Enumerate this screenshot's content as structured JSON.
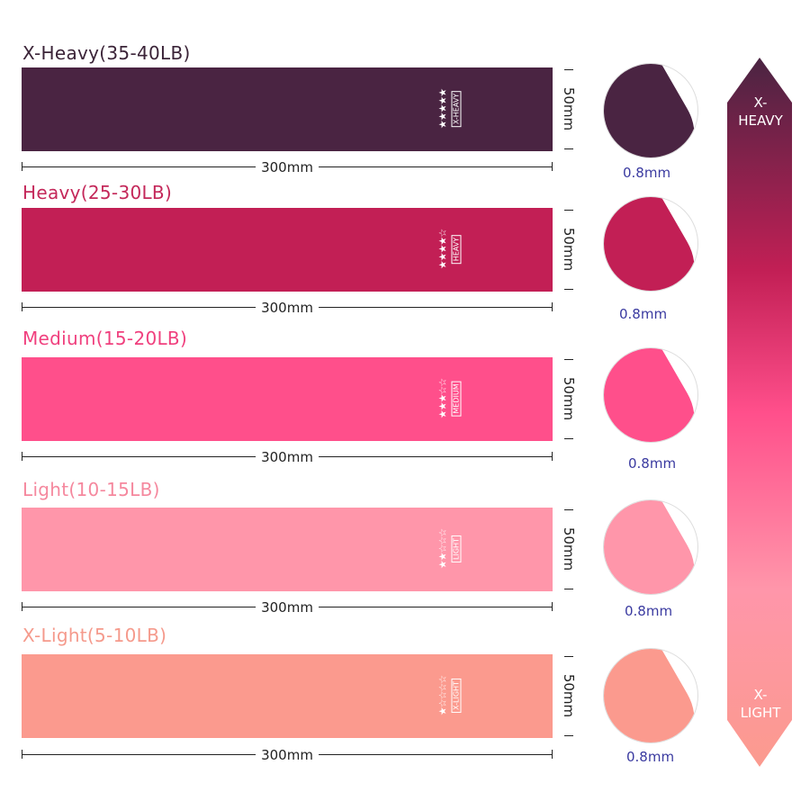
{
  "bands": [
    {
      "title": "X-Heavy(35-40LB)",
      "tag": "X-HEAVY",
      "stars": "★★★★★",
      "color": "#4a2442",
      "title_color": "#3b2438",
      "length": "300mm",
      "width": "50mm",
      "thickness": "0.8mm"
    },
    {
      "title": "Heavy(25-30LB)",
      "tag": "HEAVY",
      "stars": "★★★★☆",
      "color": "#c21f55",
      "title_color": "#c4285a",
      "length": "300mm",
      "width": "50mm",
      "thickness": "0.8mm"
    },
    {
      "title": "Medium(15-20LB)",
      "tag": "MEDIUM",
      "stars": "★★★☆☆",
      "color": "#ff4f8b",
      "title_color": "#f0407e",
      "length": "300mm",
      "width": "50mm",
      "thickness": "0.8mm"
    },
    {
      "title": "Light(10-15LB)",
      "tag": "LIGHT",
      "stars": "★★☆☆☆",
      "color": "#ff96aa",
      "title_color": "#f5889e",
      "length": "300mm",
      "width": "50mm",
      "thickness": "0.8mm"
    },
    {
      "title": "X-Light(5-10LB)",
      "tag": "X-LIGHT",
      "stars": "★☆☆☆☆",
      "color": "#fb9a8e",
      "title_color": "#f59a8c",
      "length": "300mm",
      "width": "50mm",
      "thickness": "0.8mm"
    }
  ],
  "scale": {
    "top_label": "X-\nHEAVY",
    "bottom_label": "X-\nLIGHT",
    "top_color": "#4a2442",
    "mid_color": "#ff4f8b",
    "bottom_color": "#fb9a8e"
  }
}
